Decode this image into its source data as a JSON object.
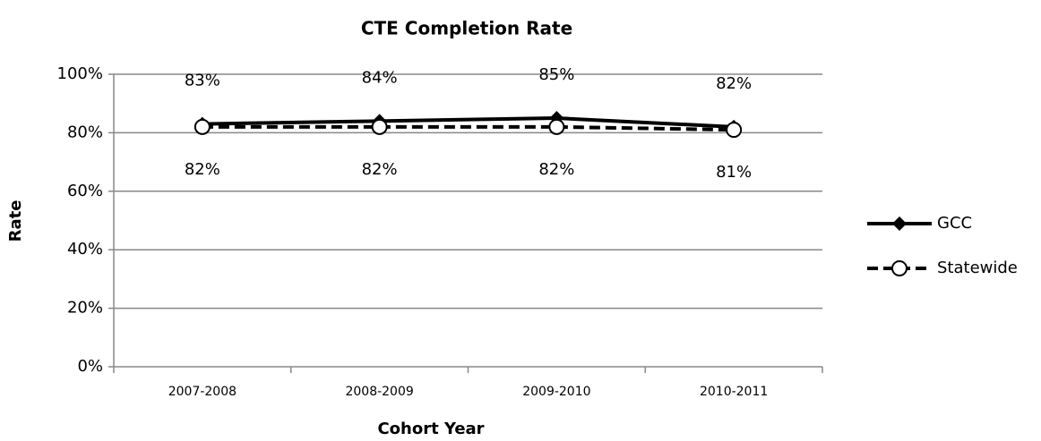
{
  "chart_data": {
    "type": "line",
    "title": "CTE Completion Rate",
    "x_label": "Cohort Year",
    "y_label": "Rate",
    "categories": [
      "2007-2008",
      "2008-2009",
      "2009-2010",
      "2010-2011"
    ],
    "series": [
      {
        "name": "GCC",
        "color": "#000000",
        "line_style": "solid",
        "marker": "diamond",
        "label_position": "above",
        "values": [
          83,
          84,
          85,
          82
        ],
        "value_labels": [
          "83%",
          "84%",
          "85%",
          "82%"
        ]
      },
      {
        "name": "Statewide",
        "color": "#000000",
        "line_style": "dashed",
        "marker": "circle",
        "label_position": "below",
        "values": [
          82,
          82,
          82,
          81
        ],
        "value_labels": [
          "82%",
          "82%",
          "82%",
          "81%"
        ]
      }
    ],
    "ylim": [
      0,
      100
    ],
    "yticks": [
      {
        "value": 0,
        "label": "0%"
      },
      {
        "value": 20,
        "label": "20%"
      },
      {
        "value": 40,
        "label": "40%"
      },
      {
        "value": 60,
        "label": "60%"
      },
      {
        "value": 80,
        "label": "80%"
      },
      {
        "value": 100,
        "label": "100%"
      }
    ],
    "grid": true,
    "legend": "right"
  }
}
